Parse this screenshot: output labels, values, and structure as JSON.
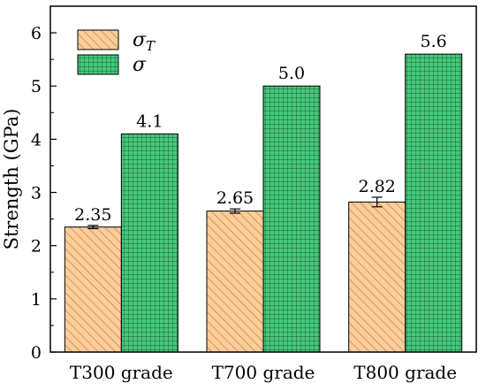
{
  "chart_data": {
    "type": "bar",
    "categories": [
      "T300 grade",
      "T700 grade",
      "T800 grade"
    ],
    "ylabel": "Strength (GPa)",
    "xlabel": "",
    "ylim": [
      0,
      6.5
    ],
    "yticks": [
      0,
      1,
      2,
      3,
      4,
      5,
      6
    ],
    "grid": false,
    "legend_position": "top-left",
    "series": [
      {
        "name": "σ_T",
        "values": [
          2.35,
          2.65,
          2.82
        ],
        "labels": [
          "2.35",
          "2.65",
          "2.82"
        ],
        "errors": [
          0.03,
          0.04,
          0.09
        ],
        "color": "#f9cd9c",
        "hatch": "diagonal"
      },
      {
        "name": "σ",
        "values": [
          4.1,
          5.0,
          5.6
        ],
        "labels": [
          "4.1",
          "5.0",
          "5.6"
        ],
        "color": "#45c87a",
        "hatch": "grid"
      }
    ]
  }
}
